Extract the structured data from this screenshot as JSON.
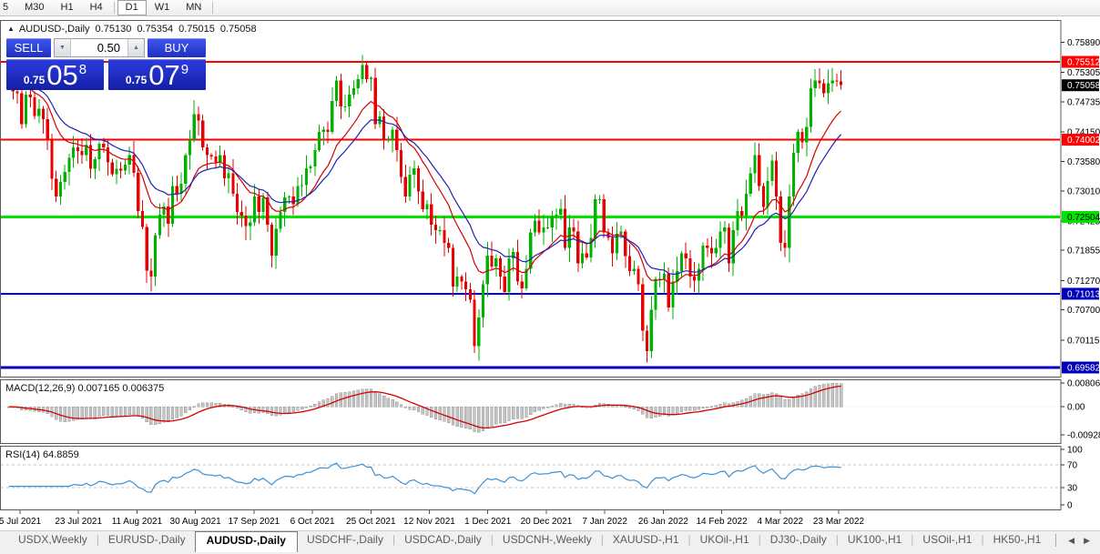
{
  "toolbar": {
    "groups": [
      [
        "5",
        "M30",
        "H1",
        "H4"
      ],
      [
        "D1",
        "W1",
        "MN"
      ]
    ],
    "active": "D1"
  },
  "quote_header": {
    "collapse_icon": "▲",
    "symbol": "AUDUSD-,Daily",
    "open": "0.75130",
    "high": "0.75354",
    "low": "0.75015",
    "close": "0.75058"
  },
  "trade_panel": {
    "sell_label": "SELL",
    "buy_label": "BUY",
    "volume": "0.50",
    "down_icon": "▼",
    "up_icon": "▲",
    "sell_price": {
      "prefix": "0.75",
      "big": "05",
      "sup": "8"
    },
    "buy_price": {
      "prefix": "0.75",
      "big": "07",
      "sup": "9"
    }
  },
  "chart_data": {
    "type": "candlestick",
    "symbol": "AUDUSD-",
    "timeframe": "Daily",
    "x_labels": [
      "5 Jul 2021",
      "23 Jul 2021",
      "11 Aug 2021",
      "30 Aug 2021",
      "17 Sep 2021",
      "6 Oct 2021",
      "25 Oct 2021",
      "12 Nov 2021",
      "1 Dec 2021",
      "20 Dec 2021",
      "7 Jan 2022",
      "26 Jan 2022",
      "14 Feb 2022",
      "4 Mar 2022",
      "23 Mar 2022"
    ],
    "y_ticks": [
      "0.75890",
      "0.75305",
      "0.74735",
      "0.74150",
      "0.73580",
      "0.73010",
      "0.72425",
      "0.71855",
      "0.71270",
      "0.70700",
      "0.70115"
    ],
    "ylim": [
      0.69406,
      0.76294
    ],
    "grid": false,
    "current_price": {
      "value": "0.75058",
      "bg": "#000000",
      "fg": "#ffffff"
    },
    "levels": [
      {
        "price": 0.75512,
        "label": "0.75512",
        "color": "#fe0000",
        "badge_fg": "#ffffff",
        "width": 2
      },
      {
        "price": 0.74002,
        "label": "0.74002",
        "color": "#fe0000",
        "badge_fg": "#ffffff",
        "width": 2
      },
      {
        "price": 0.72504,
        "label": "0.72504",
        "color": "#00e400",
        "badge_fg": "#000000",
        "width": 3
      },
      {
        "price": 0.71013,
        "label": "0.71013",
        "color": "#0000bb",
        "badge_fg": "#ffffff",
        "width": 2
      },
      {
        "price": 0.69582,
        "label": "0.69582",
        "color": "#0000bb",
        "badge_fg": "#ffffff",
        "width": 3
      }
    ],
    "closes": [
      0.7525,
      0.7494,
      0.749,
      0.743,
      0.7488,
      0.7482,
      0.7446,
      0.746,
      0.744,
      0.74,
      0.7324,
      0.729,
      0.7318,
      0.7338,
      0.7365,
      0.7385,
      0.7378,
      0.737,
      0.739,
      0.7344,
      0.7362,
      0.7392,
      0.7385,
      0.7356,
      0.7333,
      0.7344,
      0.734,
      0.7352,
      0.737,
      0.7336,
      0.7262,
      0.7231,
      0.7146,
      0.7135,
      0.7215,
      0.7255,
      0.7271,
      0.7237,
      0.731,
      0.7295,
      0.7315,
      0.737,
      0.74,
      0.745,
      0.7437,
      0.7385,
      0.737,
      0.7368,
      0.7356,
      0.737,
      0.7325,
      0.7335,
      0.7295,
      0.726,
      0.7253,
      0.7233,
      0.724,
      0.729,
      0.726,
      0.7288,
      0.7235,
      0.7175,
      0.7227,
      0.726,
      0.7288,
      0.729,
      0.7275,
      0.731,
      0.7312,
      0.7345,
      0.7348,
      0.738,
      0.7415,
      0.742,
      0.7415,
      0.7475,
      0.7515,
      0.7465,
      0.7465,
      0.7488,
      0.75,
      0.7518,
      0.7545,
      0.7518,
      0.752,
      0.743,
      0.7445,
      0.74,
      0.74,
      0.742,
      0.738,
      0.7328,
      0.729,
      0.7332,
      0.7345,
      0.73,
      0.7265,
      0.7275,
      0.7235,
      0.7225,
      0.7225,
      0.72,
      0.719,
      0.7115,
      0.7135,
      0.7125,
      0.711,
      0.709,
      0.7,
      0.7055,
      0.712,
      0.7175,
      0.7154,
      0.717,
      0.7135,
      0.7105,
      0.717,
      0.7182,
      0.7125,
      0.7112,
      0.715,
      0.722,
      0.7243,
      0.722,
      0.723,
      0.723,
      0.725,
      0.7255,
      0.7266,
      0.719,
      0.723,
      0.7222,
      0.716,
      0.718,
      0.7172,
      0.721,
      0.7285,
      0.7285,
      0.722,
      0.721,
      0.718,
      0.7218,
      0.7222,
      0.7174,
      0.7145,
      0.715,
      0.712,
      0.703,
      0.699,
      0.707,
      0.713,
      0.713,
      0.714,
      0.7075,
      0.7125,
      0.7145,
      0.718,
      0.717,
      0.7135,
      0.7127,
      0.715,
      0.7195,
      0.719,
      0.718,
      0.719,
      0.7222,
      0.723,
      0.716,
      0.7225,
      0.7262,
      0.7253,
      0.7295,
      0.7335,
      0.737,
      0.731,
      0.727,
      0.732,
      0.736,
      0.729,
      0.72,
      0.719,
      0.729,
      0.7375,
      0.7415,
      0.7395,
      0.7425,
      0.75,
      0.7515,
      0.751,
      0.749,
      0.751,
      0.7515,
      0.7513,
      0.7506
    ],
    "extremes": {
      "11": [
        0.7325,
        0.7289
      ],
      "33": [
        0.717,
        0.7106
      ],
      "43": [
        0.7477,
        0.74
      ],
      "61": [
        0.724,
        0.717
      ],
      "82": [
        0.7555,
        0.7515
      ],
      "108": [
        0.7095,
        0.6993
      ],
      "148": [
        0.7035,
        0.6968
      ],
      "187": [
        0.7537,
        0.7495
      ],
      "193": [
        0.75354,
        0.75015
      ]
    },
    "overlays": [
      {
        "name": "ma-fast",
        "type": "EMA",
        "period": 13,
        "color": "#d40000"
      },
      {
        "name": "ma-slow",
        "type": "EMA",
        "period": 21,
        "color": "#2020b0"
      }
    ],
    "macd": {
      "label": "MACD(12,26,9)",
      "values_text": "0.007165 0.006375",
      "fast": 12,
      "slow": 26,
      "signal": 9,
      "y_ticks": [
        "0.008061",
        "0.00",
        "-0.009286"
      ],
      "hist_color": "#c4c4c4",
      "hist_border": "#9a9a9a",
      "signal_color": "#d40000"
    },
    "rsi": {
      "label": "RSI(14)",
      "value_text": "64.8859",
      "period": 14,
      "y_ticks": [
        "100",
        "70",
        "30",
        "0"
      ],
      "guide_levels": [
        70,
        30
      ],
      "line_color": "#3d8fd2",
      "guide_color": "#c4c4c4"
    },
    "up_color": "#00b200",
    "down_color": "#e80000",
    "axis_text_color": "#000000"
  },
  "tabs": {
    "items": [
      "USDX,Weekly",
      "EURUSD-,Daily",
      "AUDUSD-,Daily",
      "USDCHF-,Daily",
      "USDCAD-,Daily",
      "USDCNH-,Weekly",
      "XAUUSD-,H1",
      "UKOil-,H1",
      "DJ30-,Daily",
      "UK100-,H1",
      "USOil-,H1",
      "HK50-,H1"
    ],
    "active": "AUDUSD-,Daily",
    "scroll_left_icon": "◀",
    "scroll_right_icon": "▶"
  }
}
